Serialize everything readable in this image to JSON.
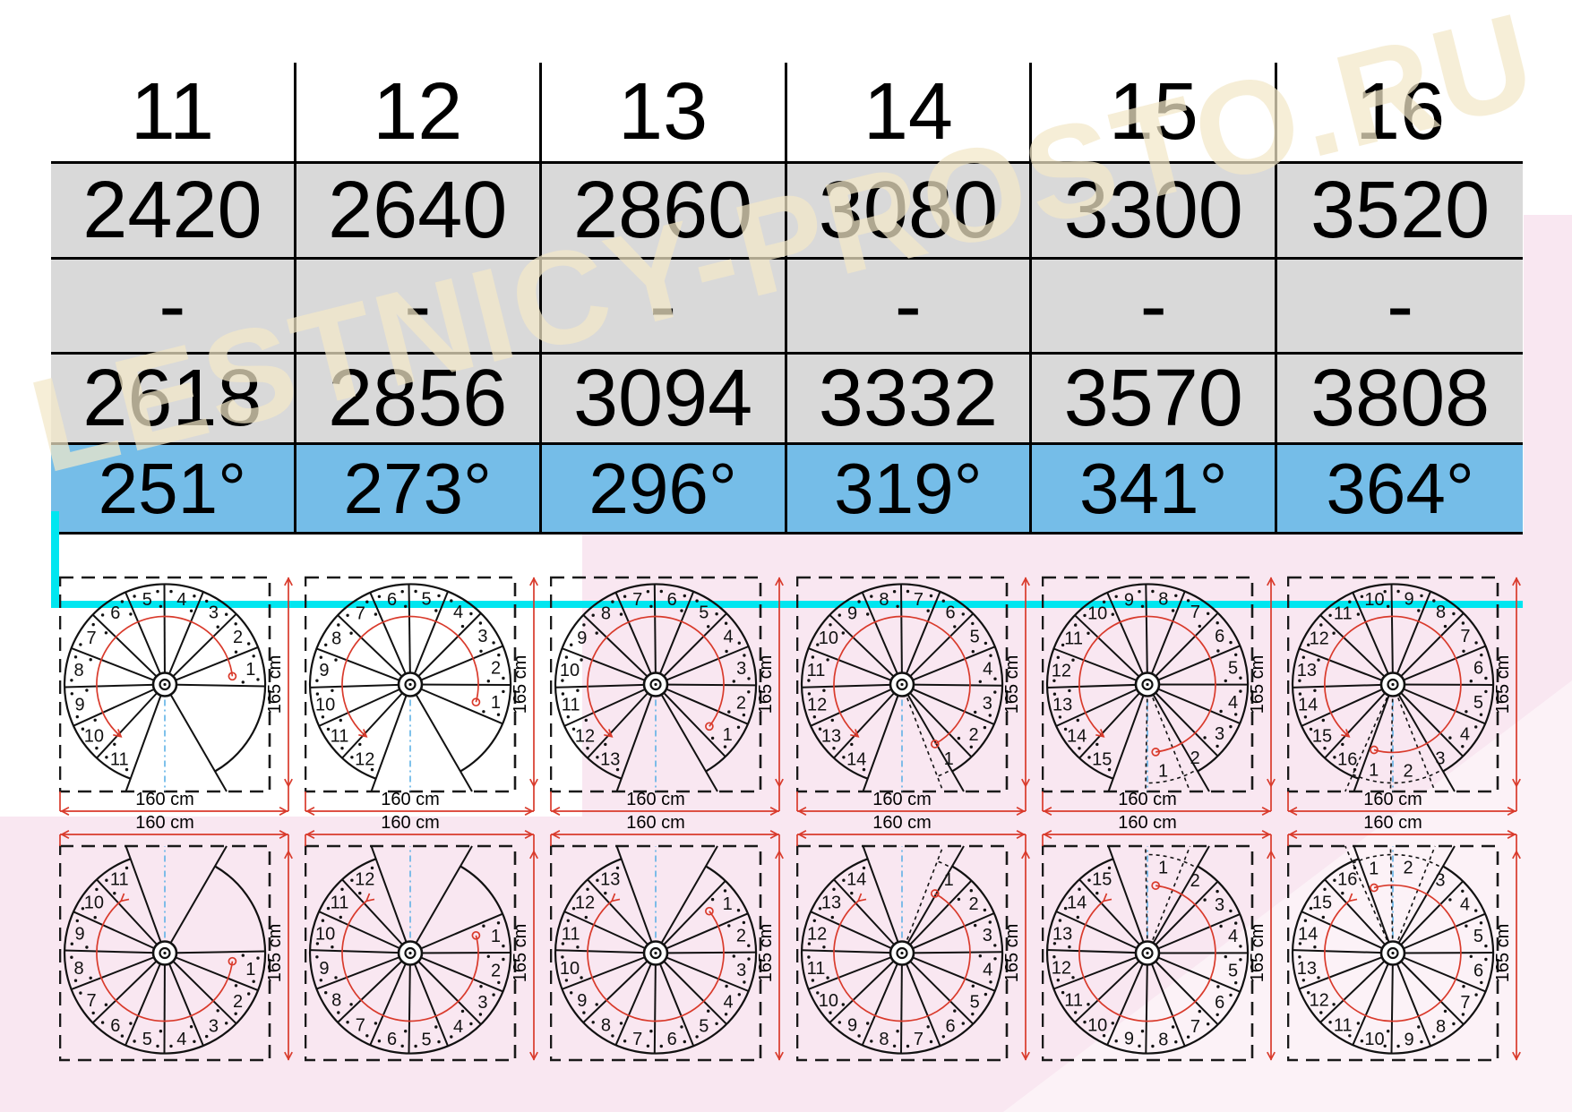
{
  "watermark": {
    "text": "LESTNICY-PROSTO.RU"
  },
  "table": {
    "columns": [
      {
        "steps": "11",
        "height_mm": "2420",
        "range_dash": "-",
        "length_mm": "2618",
        "rotation": "251°"
      },
      {
        "steps": "12",
        "height_mm": "2640",
        "range_dash": "-",
        "length_mm": "2856",
        "rotation": "273°"
      },
      {
        "steps": "13",
        "height_mm": "2860",
        "range_dash": "-",
        "length_mm": "3094",
        "rotation": "296°"
      },
      {
        "steps": "14",
        "height_mm": "3080",
        "range_dash": "-",
        "length_mm": "3332",
        "rotation": "319°"
      },
      {
        "steps": "15",
        "height_mm": "3300",
        "range_dash": "-",
        "length_mm": "3570",
        "rotation": "341°"
      },
      {
        "steps": "16",
        "height_mm": "3520",
        "range_dash": "-",
        "length_mm": "3808",
        "rotation": "364°"
      }
    ]
  },
  "diagrams": {
    "width_label": "160 cm",
    "height_label": "165 cm",
    "rows": [
      {
        "orientation": "landing-bottom",
        "items": [
          {
            "steps": 11,
            "rotation_deg": 251
          },
          {
            "steps": 12,
            "rotation_deg": 273
          },
          {
            "steps": 13,
            "rotation_deg": 296
          },
          {
            "steps": 14,
            "rotation_deg": 319
          },
          {
            "steps": 15,
            "rotation_deg": 341
          },
          {
            "steps": 16,
            "rotation_deg": 364
          }
        ]
      },
      {
        "orientation": "landing-top",
        "items": [
          {
            "steps": 11,
            "rotation_deg": 251
          },
          {
            "steps": 12,
            "rotation_deg": 273
          },
          {
            "steps": 13,
            "rotation_deg": 296
          },
          {
            "steps": 14,
            "rotation_deg": 319
          },
          {
            "steps": 15,
            "rotation_deg": 341
          },
          {
            "steps": 16,
            "rotation_deg": 364
          }
        ]
      }
    ]
  },
  "colors": {
    "row_gray": "#d9d9d9",
    "row_blue": "#75bde8",
    "cyan_accent": "#00e6f0",
    "red": "#d93a2b",
    "pink_bg": "#f9e7f1",
    "blue_centerline": "#5fb2e6",
    "ink": "#111111",
    "watermark_cream": "rgba(242,231,200,0.72)"
  }
}
